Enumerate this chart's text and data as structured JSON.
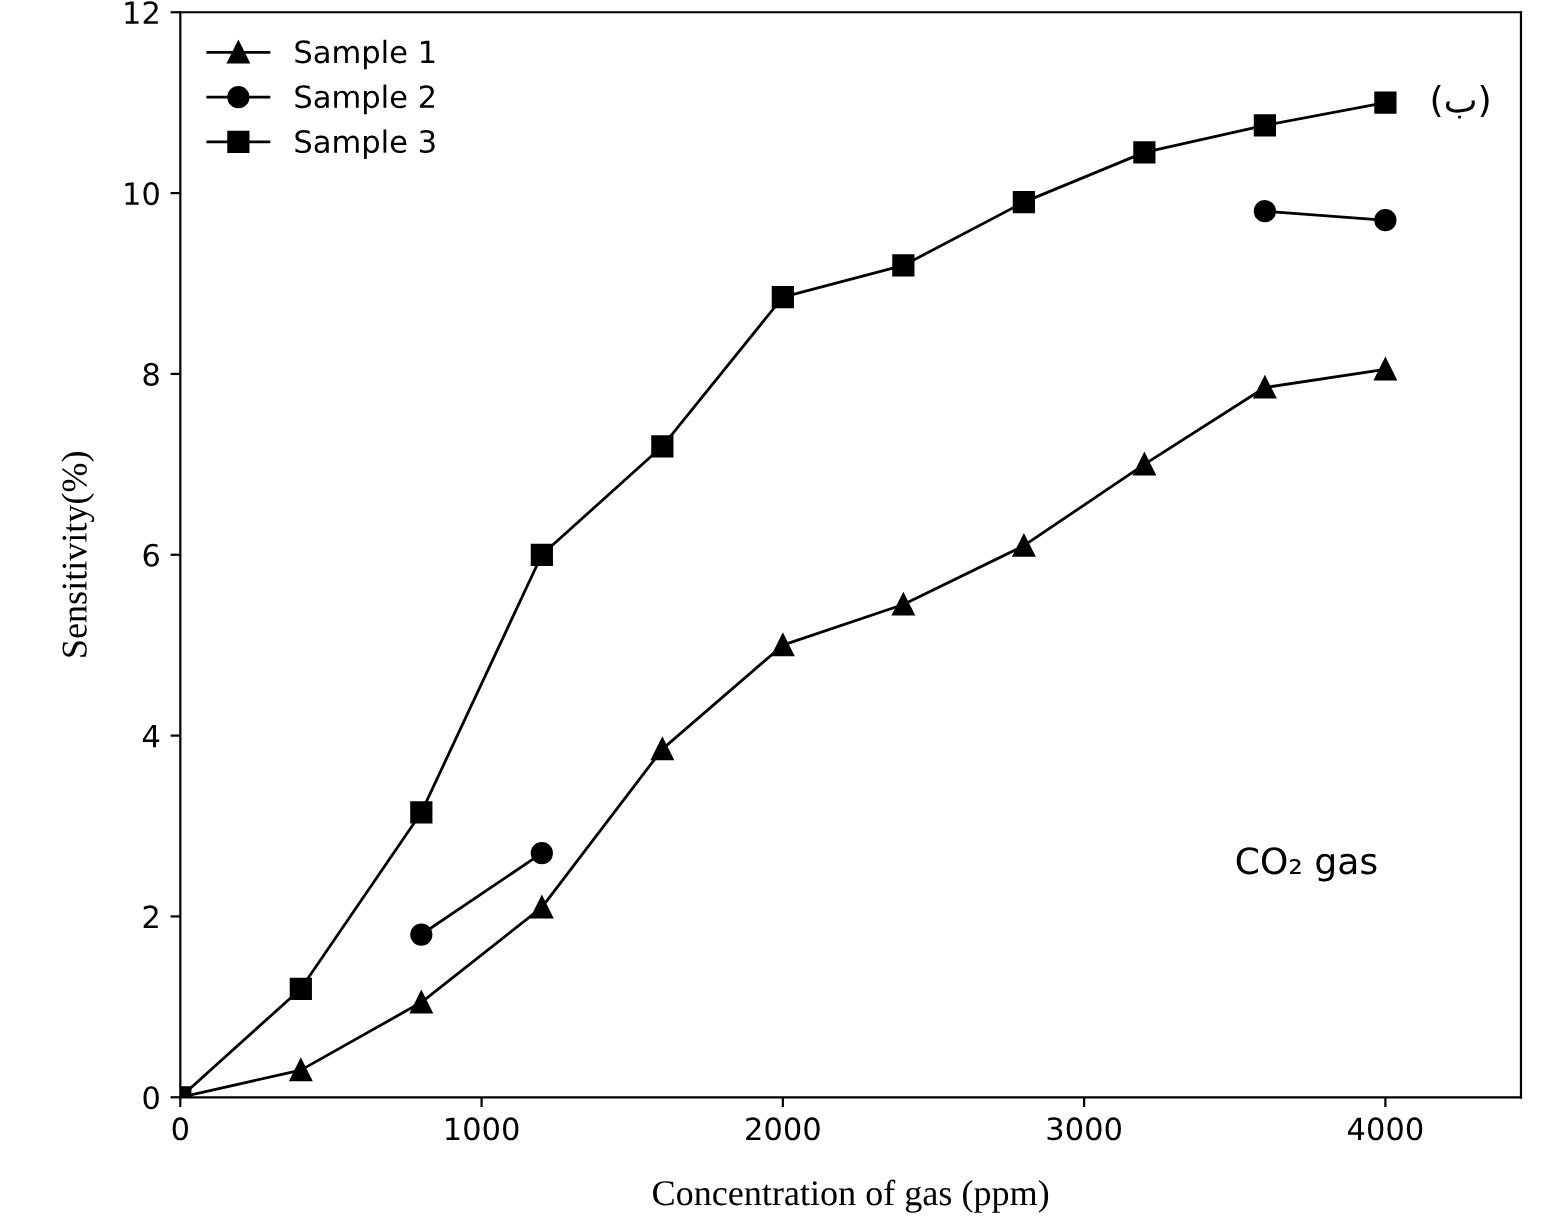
{
  "chart_data": {
    "type": "line",
    "xlabel": "Concentration of gas (ppm)",
    "ylabel": "Sensitivity(%)",
    "x": [
      0,
      400,
      800,
      1200,
      1600,
      2000,
      2400,
      2800,
      3200,
      3600,
      4000
    ],
    "series": [
      {
        "name": "Sample 1",
        "color": "#000000",
        "marker": "triangle",
        "values": [
          0,
          0.3,
          1.05,
          2.1,
          3.85,
          5.0,
          5.45,
          6.1,
          7.0,
          7.85,
          8.05
        ]
      },
      {
        "name": "Sample 2",
        "color": "#000000",
        "marker": "circle",
        "values": [
          null,
          null,
          1.8,
          2.7,
          null,
          null,
          null,
          null,
          null,
          9.8,
          9.7
        ]
      },
      {
        "name": "Sample 3",
        "color": "#000000",
        "marker": "square",
        "values": [
          0,
          1.2,
          3.15,
          6.0,
          7.2,
          8.85,
          9.2,
          9.9,
          10.45,
          10.75,
          11.0
        ]
      }
    ],
    "xlim": [
      0,
      4450
    ],
    "xticks": [
      0,
      1000,
      2000,
      3000,
      4000
    ],
    "ylim": [
      0,
      12
    ],
    "yticks": [
      0,
      2,
      4,
      6,
      8,
      10,
      12
    ],
    "annotations": [
      "(ب)",
      "CO₂ gas"
    ],
    "legend": "top left",
    "grid": false
  }
}
